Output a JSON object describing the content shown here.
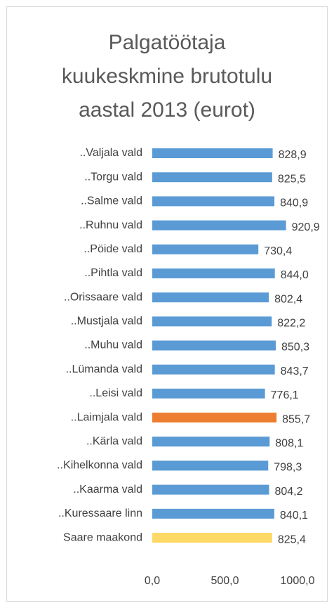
{
  "chart_data": {
    "type": "barh",
    "title": [
      "Palgatöötaja",
      "kuukeskmine brutotulu",
      "aastal 2013 (eurot)"
    ],
    "categories": [
      "..Valjala vald",
      "..Torgu vald",
      "..Salme vald",
      "..Ruhnu vald",
      "..Pöide vald",
      "..Pihtla vald",
      "..Orissaare vald",
      "..Mustjala vald",
      "..Muhu vald",
      "..Lümanda vald",
      "..Leisi vald",
      "..Laimjala vald",
      "..Kärla vald",
      "..Kihelkonna vald",
      "..Kaarma vald",
      "..Kuressaare linn",
      "Saare maakond"
    ],
    "values": [
      828.9,
      825.5,
      840.9,
      920.9,
      730.4,
      844.0,
      802.4,
      822.2,
      850.3,
      843.7,
      776.1,
      855.7,
      808.1,
      798.3,
      804.2,
      840.1,
      825.4
    ],
    "value_labels": [
      "828,9",
      "825,5",
      "840,9",
      "920,9",
      "730,4",
      "844,0",
      "802,4",
      "822,2",
      "850,3",
      "843,7",
      "776,1",
      "855,7",
      "808,1",
      "798,3",
      "804,2",
      "840,1",
      "825,4"
    ],
    "colors": [
      "#5b9bd5",
      "#5b9bd5",
      "#5b9bd5",
      "#5b9bd5",
      "#5b9bd5",
      "#5b9bd5",
      "#5b9bd5",
      "#5b9bd5",
      "#5b9bd5",
      "#5b9bd5",
      "#5b9bd5",
      "#ed7d31",
      "#5b9bd5",
      "#5b9bd5",
      "#5b9bd5",
      "#5b9bd5",
      "#ffd966"
    ],
    "xlim": [
      0,
      1000
    ],
    "xticks": [
      {
        "value": 0,
        "label": "0,0"
      },
      {
        "value": 500,
        "label": "500,0"
      },
      {
        "value": 1000,
        "label": "1000,0"
      }
    ]
  }
}
